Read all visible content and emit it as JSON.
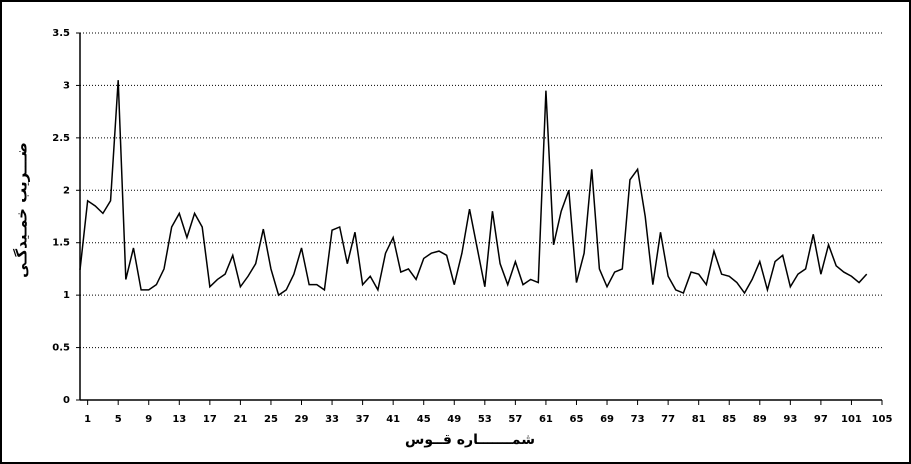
{
  "chart_data": {
    "type": "line",
    "y_label": "ضـــريب خمـيدگـی",
    "x_label": "شمـــــــاره قــوس",
    "x": [
      0,
      1,
      2,
      3,
      4,
      5,
      6,
      7,
      8,
      9,
      10,
      11,
      12,
      13,
      14,
      15,
      16,
      17,
      18,
      19,
      20,
      21,
      22,
      23,
      24,
      25,
      26,
      27,
      28,
      29,
      30,
      31,
      32,
      33,
      34,
      35,
      36,
      37,
      38,
      39,
      40,
      41,
      42,
      43,
      44,
      45,
      46,
      47,
      48,
      49,
      50,
      51,
      52,
      53,
      54,
      55,
      56,
      57,
      58,
      59,
      60,
      61,
      62,
      63,
      64,
      65,
      66,
      67,
      68,
      69,
      70,
      71,
      72,
      73,
      74,
      75,
      76,
      77,
      78,
      79,
      80,
      81,
      82,
      83,
      84,
      85,
      86,
      87,
      88,
      89,
      90,
      91,
      92,
      93,
      94,
      95,
      96,
      97,
      98,
      99,
      100,
      101,
      102,
      103
    ],
    "series": [
      {
        "color": "#000000",
        "values": [
          1.24,
          1.9,
          1.85,
          1.78,
          1.9,
          3.05,
          1.15,
          1.45,
          1.05,
          1.05,
          1.1,
          1.25,
          1.65,
          1.78,
          1.55,
          1.78,
          1.65,
          1.08,
          1.15,
          1.2,
          1.38,
          1.08,
          1.18,
          1.3,
          1.63,
          1.25,
          1.0,
          1.05,
          1.2,
          1.45,
          1.1,
          1.1,
          1.05,
          1.62,
          1.65,
          1.3,
          1.6,
          1.1,
          1.18,
          1.05,
          1.4,
          1.55,
          1.22,
          1.25,
          1.15,
          1.35,
          1.4,
          1.42,
          1.38,
          1.1,
          1.4,
          1.82,
          1.45,
          1.08,
          1.8,
          1.3,
          1.1,
          1.32,
          1.1,
          1.15,
          1.12,
          2.95,
          1.48,
          1.8,
          2.0,
          1.12,
          1.4,
          2.2,
          1.25,
          1.08,
          1.22,
          1.25,
          2.1,
          2.2,
          1.75,
          1.1,
          1.6,
          1.18,
          1.05,
          1.02,
          1.22,
          1.2,
          1.1,
          1.42,
          1.2,
          1.18,
          1.12,
          1.02,
          1.15,
          1.32,
          1.05,
          1.32,
          1.38,
          1.08,
          1.2,
          1.25,
          1.58,
          1.2,
          1.48,
          1.28,
          1.22,
          1.18,
          1.12,
          1.2
        ]
      }
    ],
    "xlim": [
      0,
      105
    ],
    "xticks": [
      1,
      5,
      9,
      13,
      17,
      21,
      25,
      29,
      33,
      37,
      41,
      45,
      49,
      53,
      57,
      61,
      65,
      69,
      73,
      77,
      81,
      85,
      89,
      93,
      97,
      101,
      105
    ],
    "ylim": [
      0,
      3.5
    ],
    "yticks": [
      0,
      0.5,
      1,
      1.5,
      2,
      2.5,
      3,
      3.5
    ],
    "grid": true
  }
}
